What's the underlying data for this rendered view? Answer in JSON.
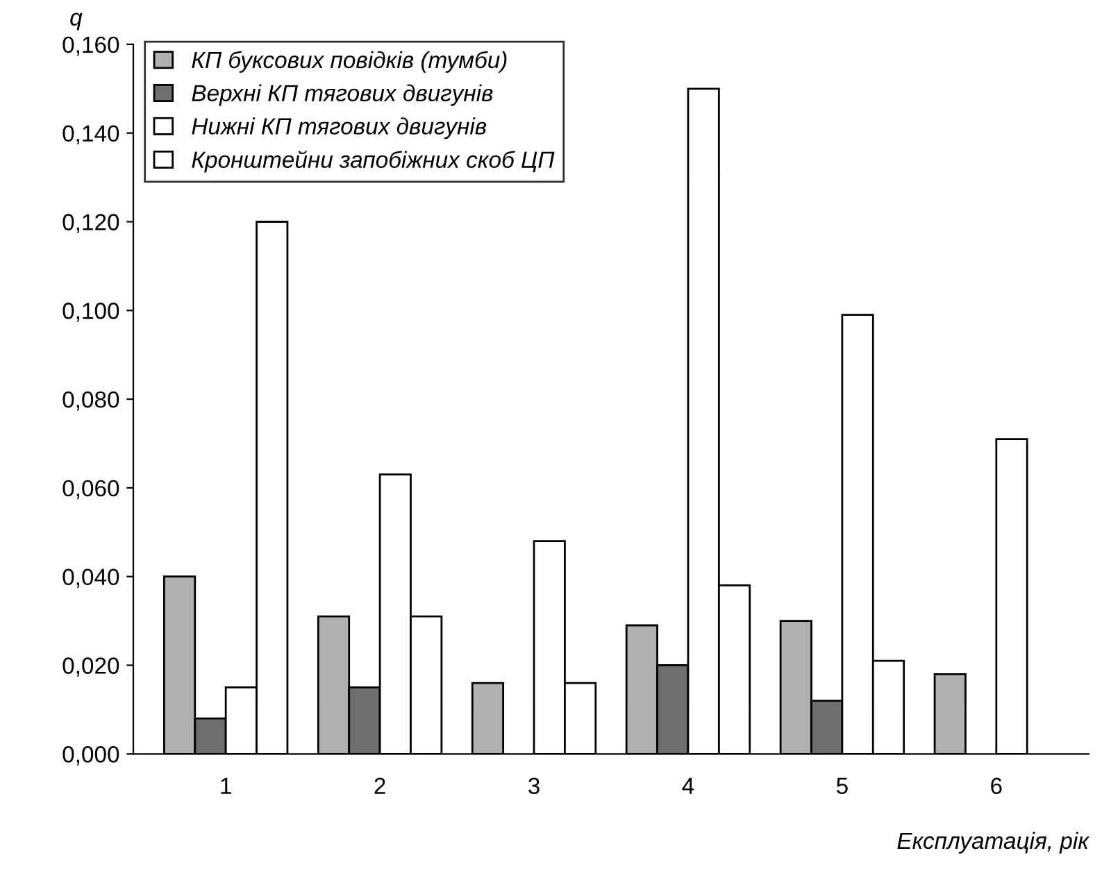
{
  "chart_data": {
    "type": "bar",
    "ylabel": "q",
    "xlabel": "Експлуатація, рік",
    "categories": [
      "1",
      "2",
      "3",
      "4",
      "5",
      "6"
    ],
    "series": [
      {
        "name": "КП буксових повідків (тумби)",
        "color": "#b0b0b0",
        "values": [
          0.04,
          0.031,
          0.016,
          0.029,
          0.03,
          0.018
        ]
      },
      {
        "name": "Верхні КП тягових двигунів",
        "color": "#6e6e6e",
        "values": [
          0.008,
          0.015,
          null,
          0.02,
          0.012,
          null
        ]
      },
      {
        "name": "Нижні КП тягових двигунів",
        "color": "#ffffff",
        "values": [
          0.015,
          0.063,
          0.048,
          0.15,
          0.099,
          0.071
        ]
      },
      {
        "name": "Кронштейни запобіжних скоб ЦП",
        "color": "#ffffff",
        "values": [
          0.12,
          0.031,
          0.016,
          0.038,
          0.021,
          0.0
        ]
      }
    ],
    "ylim": [
      0,
      0.16
    ],
    "yticks": [
      {
        "value": 0,
        "label": "0,000"
      },
      {
        "value": 0.02,
        "label": "0,020"
      },
      {
        "value": 0.04,
        "label": "0,040"
      },
      {
        "value": 0.06,
        "label": "0,060"
      },
      {
        "value": 0.08,
        "label": "0,080"
      },
      {
        "value": 0.1,
        "label": "0,100"
      },
      {
        "value": 0.12,
        "label": "0,120"
      },
      {
        "value": 0.14,
        "label": "0,140"
      },
      {
        "value": 0.16,
        "label": "0,160"
      }
    ],
    "grid": false,
    "legend": "top left"
  }
}
